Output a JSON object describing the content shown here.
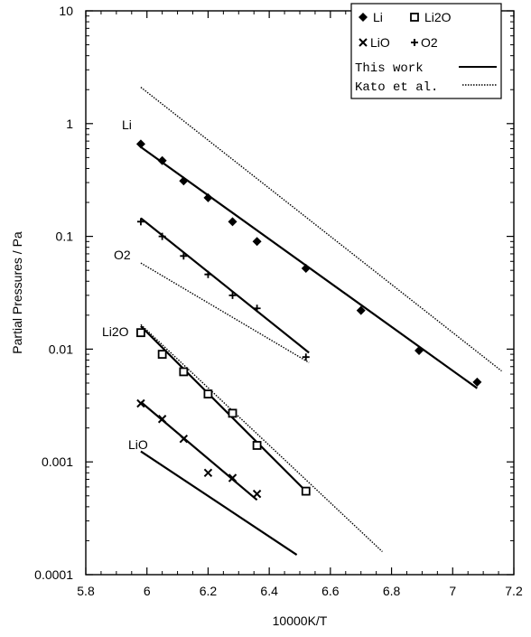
{
  "chart_data": {
    "type": "scatter",
    "title": "",
    "xlabel": "10000K/T",
    "ylabel": "Partial Pressures / Pa",
    "xlim": [
      5.8,
      7.2
    ],
    "ylim": [
      0.0001,
      10
    ],
    "yscale": "log",
    "xticks": [
      "5.8",
      "6",
      "6.2",
      "6.4",
      "6.6",
      "6.8",
      "7",
      "7.2"
    ],
    "yticks": [
      "0.0001",
      "0.001",
      "0.01",
      "0.1",
      "1",
      "10"
    ],
    "xtick_values": [
      5.8,
      6.0,
      6.2,
      6.4,
      6.6,
      6.8,
      7.0,
      7.2
    ],
    "ytick_values": [
      0.0001,
      0.001,
      0.01,
      0.1,
      1,
      10
    ],
    "legend_position": "top-right",
    "legend": {
      "li": "Li",
      "li2o": "Li2O",
      "lio": "LiO",
      "o2": "O2",
      "this_work": "This work",
      "kato": "Kato et al."
    },
    "annotations": [
      "Li",
      "O2",
      "Li2O",
      "LiO"
    ],
    "series": [
      {
        "name": "Li",
        "marker": "diamond",
        "points": [
          [
            5.98,
            0.66
          ],
          [
            6.05,
            0.47
          ],
          [
            6.12,
            0.31
          ],
          [
            6.2,
            0.22
          ],
          [
            6.28,
            0.135
          ],
          [
            6.36,
            0.09
          ],
          [
            6.52,
            0.052
          ],
          [
            6.7,
            0.022
          ],
          [
            6.89,
            0.0097
          ],
          [
            7.08,
            0.0051
          ]
        ]
      },
      {
        "name": "O2",
        "marker": "plus",
        "points": [
          [
            5.98,
            0.135
          ],
          [
            6.05,
            0.1
          ],
          [
            6.12,
            0.067
          ],
          [
            6.2,
            0.046
          ],
          [
            6.28,
            0.03
          ],
          [
            6.36,
            0.023
          ],
          [
            6.52,
            0.0085
          ]
        ]
      },
      {
        "name": "Li2O",
        "marker": "square",
        "points": [
          [
            5.98,
            0.014
          ],
          [
            6.05,
            0.009
          ],
          [
            6.12,
            0.0063
          ],
          [
            6.2,
            0.004
          ],
          [
            6.28,
            0.0027
          ],
          [
            6.36,
            0.0014
          ],
          [
            6.52,
            0.00055
          ]
        ]
      },
      {
        "name": "LiO",
        "marker": "cross",
        "points": [
          [
            5.98,
            0.0033
          ],
          [
            6.05,
            0.0024
          ],
          [
            6.12,
            0.0016
          ],
          [
            6.2,
            0.0008
          ],
          [
            6.28,
            0.00072
          ],
          [
            6.36,
            0.00052
          ]
        ]
      }
    ],
    "lines": [
      {
        "name": "This work",
        "series": "Li",
        "style": "solid",
        "points": [
          [
            5.98,
            0.62
          ],
          [
            7.08,
            0.0045
          ]
        ]
      },
      {
        "name": "This work",
        "series": "O2",
        "style": "solid",
        "points": [
          [
            5.98,
            0.145
          ],
          [
            6.53,
            0.0093
          ]
        ]
      },
      {
        "name": "This work",
        "series": "Li2O",
        "style": "solid",
        "points": [
          [
            5.98,
            0.016
          ],
          [
            6.52,
            0.00055
          ]
        ]
      },
      {
        "name": "This work",
        "series": "LiO",
        "style": "solid",
        "points": [
          [
            5.98,
            0.0034
          ],
          [
            6.36,
            0.00046
          ]
        ]
      },
      {
        "name": "Kato et al.",
        "series": "Li",
        "style": "dotted",
        "points": [
          [
            5.98,
            2.1
          ],
          [
            7.16,
            0.0064
          ]
        ]
      },
      {
        "name": "Kato et al.",
        "series": "O2",
        "style": "dotted",
        "points": [
          [
            5.98,
            0.058
          ],
          [
            6.53,
            0.0076
          ]
        ]
      },
      {
        "name": "Kato et al.",
        "series": "Li2O",
        "style": "dotted",
        "points": [
          [
            5.98,
            0.0165
          ],
          [
            6.77,
            0.00016
          ]
        ]
      },
      {
        "name": "Kato et al.",
        "series": "LiO",
        "style": "solid",
        "points": [
          [
            5.98,
            0.00124
          ],
          [
            6.49,
            0.00015
          ]
        ]
      }
    ]
  }
}
